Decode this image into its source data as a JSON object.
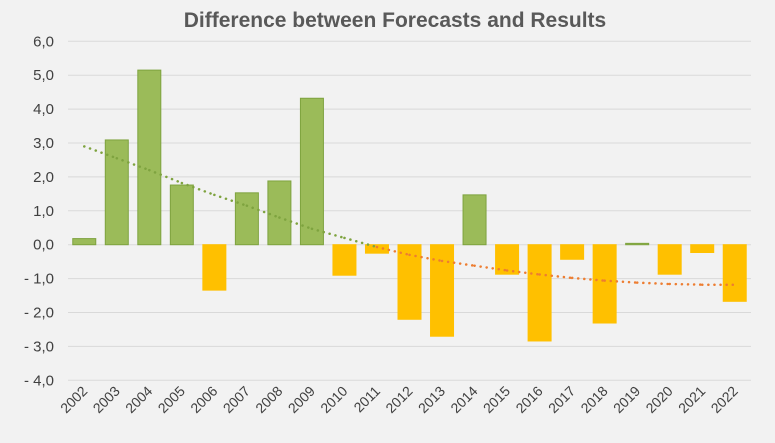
{
  "chart_data": {
    "type": "bar",
    "title": "Difference between Forecasts and Results",
    "xlabel": "",
    "ylabel": "",
    "ylim": [
      -4,
      6
    ],
    "yticks": [
      "6,0",
      "5,0",
      "4,0",
      "3,0",
      "2,0",
      "1,0",
      "0,0",
      "- 1,0",
      "- 2,0",
      "- 3,0",
      "- 4,0"
    ],
    "ytick_values": [
      6,
      5,
      4,
      3,
      2,
      1,
      0,
      -1,
      -2,
      -3,
      -4
    ],
    "grid": true,
    "legend": "none",
    "categories": [
      "2002",
      "2003",
      "2004",
      "2005",
      "2006",
      "2007",
      "2008",
      "2009",
      "2010",
      "2011",
      "2012",
      "2013",
      "2014",
      "2015",
      "2016",
      "2017",
      "2018",
      "2019",
      "2020",
      "2021",
      "2022"
    ],
    "values": [
      0.18,
      3.09,
      5.15,
      1.76,
      -1.34,
      1.53,
      1.88,
      4.32,
      -0.9,
      -0.25,
      -2.2,
      -2.7,
      1.47,
      -0.87,
      -2.84,
      -0.43,
      -2.31,
      0.04,
      -0.87,
      -0.23,
      -1.67
    ],
    "trendline": {
      "type": "polynomial",
      "style": "dotted",
      "values": [
        2.9,
        2.55,
        2.2,
        1.82,
        1.47,
        1.15,
        0.8,
        0.47,
        0.2,
        -0.07,
        -0.3,
        -0.48,
        -0.62,
        -0.76,
        -0.88,
        -0.98,
        -1.06,
        -1.12,
        -1.16,
        -1.18,
        -1.18
      ]
    },
    "colors": {
      "positive": "#9bbb59",
      "positive_edge": "#7ea33f",
      "negative": "#ffc000",
      "trend_positive": "#7ea33f",
      "trend_negative": "#ed7d31",
      "grid": "#d9d9d9",
      "background": "#f2f2f2"
    }
  }
}
